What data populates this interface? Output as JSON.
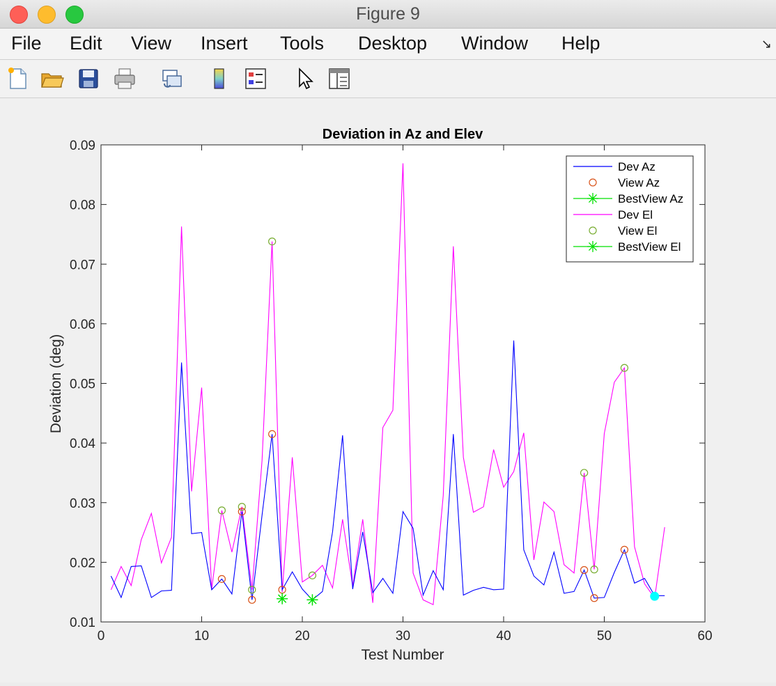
{
  "window": {
    "title": "Figure 9"
  },
  "menu": {
    "items": [
      "File",
      "Edit",
      "View",
      "Insert",
      "Tools",
      "Desktop",
      "Window",
      "Help"
    ]
  },
  "toolbar": {
    "icons": [
      "new-figure-icon",
      "open-file-icon",
      "save-icon",
      "print-icon",
      "link-icon",
      "colorbar-icon",
      "legend-icon",
      "pointer-icon",
      "property-editor-icon"
    ]
  },
  "colors": {
    "dev_az": "#0000ff",
    "view_az": "#d95319",
    "bestview": "#00e000",
    "dev_el": "#ff00ff",
    "view_el": "#77ac30",
    "highlight": "#00ffff"
  },
  "chart_data": {
    "type": "line",
    "title": "Deviation in Az and Elev",
    "xlabel": "Test Number",
    "ylabel": "Deviation (deg)",
    "xlim": [
      0,
      60
    ],
    "ylim": [
      0.01,
      0.09
    ],
    "xticks": [
      "0",
      "10",
      "20",
      "30",
      "40",
      "50",
      "60"
    ],
    "yticks": [
      "0.01",
      "0.02",
      "0.03",
      "0.04",
      "0.05",
      "0.06",
      "0.07",
      "0.08",
      "0.09"
    ],
    "grid": false,
    "legend_position": "top-right",
    "legend": [
      "Dev Az",
      "View Az",
      "BestView Az",
      "Dev El",
      "View El",
      "BestView El"
    ],
    "series": [
      {
        "name": "Dev Az",
        "style": "line",
        "x": [
          1,
          2,
          3,
          4,
          5,
          6,
          7,
          8,
          9,
          10,
          11,
          12,
          13,
          14,
          15,
          16,
          17,
          18,
          19,
          20,
          21,
          22,
          23,
          24,
          25,
          26,
          27,
          28,
          29,
          30,
          31,
          32,
          33,
          34,
          35,
          36,
          37,
          38,
          39,
          40,
          41,
          42,
          43,
          44,
          45,
          46,
          47,
          48,
          49,
          50,
          51,
          52,
          53,
          54,
          55,
          56
        ],
        "y": [
          0.0177,
          0.0141,
          0.0193,
          0.0194,
          0.0141,
          0.0152,
          0.0153,
          0.0535,
          0.0248,
          0.025,
          0.0154,
          0.0172,
          0.0147,
          0.0285,
          0.0137,
          0.0279,
          0.0415,
          0.0154,
          0.0184,
          0.0155,
          0.0137,
          0.0151,
          0.0251,
          0.0413,
          0.0155,
          0.0251,
          0.0149,
          0.0173,
          0.0148,
          0.0285,
          0.0257,
          0.0145,
          0.0186,
          0.0154,
          0.0415,
          0.0145,
          0.0153,
          0.0158,
          0.0154,
          0.0155,
          0.0572,
          0.0221,
          0.0177,
          0.0162,
          0.0217,
          0.0148,
          0.0151,
          0.0187,
          0.014,
          0.0141,
          0.0183,
          0.0221,
          0.0165,
          0.0173,
          0.0144,
          0.0144
        ]
      },
      {
        "name": "View Az",
        "style": "circle",
        "x": [
          12,
          14,
          15,
          17,
          18,
          48,
          49,
          52
        ],
        "y": [
          0.0172,
          0.0285,
          0.0137,
          0.0415,
          0.0154,
          0.0187,
          0.014,
          0.0221
        ]
      },
      {
        "name": "BestView Az",
        "style": "asterisk",
        "x": [
          18,
          21
        ],
        "y": [
          0.0139,
          0.0137
        ]
      },
      {
        "name": "Dev El",
        "style": "line",
        "x": [
          1,
          2,
          3,
          4,
          5,
          6,
          7,
          8,
          9,
          10,
          11,
          12,
          13,
          14,
          15,
          16,
          17,
          18,
          19,
          20,
          21,
          22,
          23,
          24,
          25,
          26,
          27,
          28,
          29,
          30,
          31,
          32,
          33,
          34,
          35,
          36,
          37,
          38,
          39,
          40,
          41,
          42,
          43,
          44,
          45,
          46,
          47,
          48,
          49,
          50,
          51,
          52,
          53,
          54,
          55,
          56
        ],
        "y": [
          0.0154,
          0.0193,
          0.0161,
          0.0238,
          0.0282,
          0.0199,
          0.0242,
          0.0763,
          0.0319,
          0.0493,
          0.0155,
          0.0287,
          0.0217,
          0.0293,
          0.0154,
          0.0371,
          0.0738,
          0.015,
          0.0376,
          0.0167,
          0.0178,
          0.0195,
          0.0157,
          0.0272,
          0.016,
          0.0272,
          0.0132,
          0.0426,
          0.0455,
          0.0869,
          0.0182,
          0.0137,
          0.0129,
          0.0312,
          0.073,
          0.0376,
          0.0284,
          0.0293,
          0.0389,
          0.0326,
          0.0352,
          0.0417,
          0.0204,
          0.0301,
          0.0285,
          0.0196,
          0.0182,
          0.035,
          0.0188,
          0.0416,
          0.0502,
          0.0526,
          0.0226,
          0.0164,
          0.014,
          0.0259
        ]
      },
      {
        "name": "View El",
        "style": "circle",
        "x": [
          12,
          14,
          15,
          17,
          21,
          48,
          49,
          52
        ],
        "y": [
          0.0287,
          0.0293,
          0.0154,
          0.0738,
          0.0178,
          0.035,
          0.0188,
          0.0526
        ]
      },
      {
        "name": "BestView El",
        "style": "asterisk",
        "x": [
          18,
          21
        ],
        "y": [
          0.0139,
          0.0137
        ]
      }
    ],
    "highlight_point": {
      "x": 55,
      "y": 0.0143
    }
  }
}
